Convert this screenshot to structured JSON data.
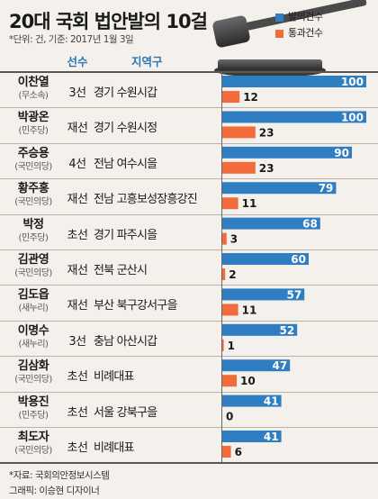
{
  "header": {
    "title": "20대 국회 법안발의 10걸",
    "subtitle": "*단위: 건, 기준: 2017년 1월 3일"
  },
  "legend": [
    {
      "label": "발의건수",
      "color": "#2f7ec1"
    },
    {
      "label": "통과건수",
      "color": "#f26b3a"
    }
  ],
  "columns": {
    "terms": "선수",
    "district": "지역구"
  },
  "footer": {
    "source": "*자료: 국회의안정보시스템",
    "credit": "그래픽: 이승현 디자이너"
  },
  "colors": {
    "proposed": "#2f7ec1",
    "passed": "#f26b3a"
  },
  "rows": [
    {
      "name": "이찬열",
      "party": "(무소속)",
      "terms": "3선",
      "district": "경기 수원시갑"
    },
    {
      "name": "박광온",
      "party": "(민주당)",
      "terms": "재선",
      "district": "경기 수원시정"
    },
    {
      "name": "주승용",
      "party": "(국민의당)",
      "terms": "4선",
      "district": "전남 여수시을"
    },
    {
      "name": "황주홍",
      "party": "(국민의당)",
      "terms": "재선",
      "district": "전남 고흥보성장흥강진"
    },
    {
      "name": "박정",
      "party": "(민주당)",
      "terms": "초선",
      "district": "경기 파주시을"
    },
    {
      "name": "김관영",
      "party": "(국민의당)",
      "terms": "재선",
      "district": "전북 군산시"
    },
    {
      "name": "김도읍",
      "party": "(새누리)",
      "terms": "재선",
      "district": "부산 북구강서구을"
    },
    {
      "name": "이명수",
      "party": "(새누리)",
      "terms": "3선",
      "district": "충남 아산시갑"
    },
    {
      "name": "김삼화",
      "party": "(국민의당)",
      "terms": "초선",
      "district": "비례대표"
    },
    {
      "name": "박용진",
      "party": "(민주당)",
      "terms": "초선",
      "district": "서울 강북구을"
    },
    {
      "name": "최도자",
      "party": "(국민의당)",
      "terms": "초선",
      "district": "비례대표"
    }
  ],
  "chart_data": {
    "type": "bar",
    "orientation": "horizontal",
    "title": "20대 국회 법안발의 10걸",
    "categories": [
      "이찬열",
      "박광온",
      "주승용",
      "황주홍",
      "박정",
      "김관영",
      "김도읍",
      "이명수",
      "김삼화",
      "박용진",
      "최도자"
    ],
    "series": [
      {
        "name": "발의건수",
        "values": [
          100,
          100,
          90,
          79,
          68,
          60,
          57,
          52,
          47,
          41,
          41
        ]
      },
      {
        "name": "통과건수",
        "values": [
          12,
          23,
          23,
          11,
          3,
          2,
          11,
          1,
          10,
          0,
          6
        ]
      }
    ],
    "xlim": [
      0,
      100
    ],
    "grid": false,
    "legend_position": "top-right"
  }
}
